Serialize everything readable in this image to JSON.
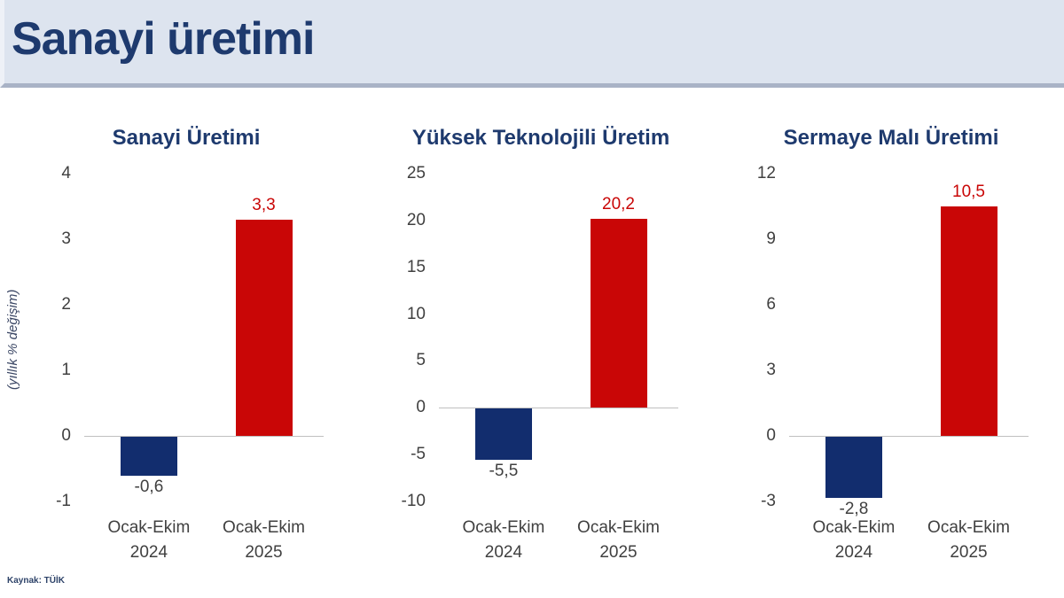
{
  "header": {
    "title": "Sanayi üretimi"
  },
  "source": {
    "label": "Kaynak: TÜİK"
  },
  "colors": {
    "bar_2024": "#122d6e",
    "bar_2025": "#c90606",
    "title_navy": "#1e3a6e",
    "header_bg": "#dde4ef",
    "axis_text": "#404040"
  },
  "chart_data": [
    {
      "type": "bar",
      "title": "Sanayi Üretimi",
      "ylabel": "(yıllık % değişim)",
      "categories": [
        "Ocak-Ekim 2024",
        "Ocak-Ekim 2025"
      ],
      "values": [
        -0.6,
        3.3
      ],
      "value_labels": [
        "-0,6",
        "3,3"
      ],
      "bar_colors": [
        "#122d6e",
        "#c90606"
      ],
      "ylim": [
        -1,
        4
      ],
      "yticks": [
        4,
        3,
        2,
        1,
        0,
        -1
      ],
      "grid": false,
      "legend": "none"
    },
    {
      "type": "bar",
      "title": "Yüksek Teknolojili Üretim",
      "ylabel": "",
      "categories": [
        "Ocak-Ekim 2024",
        "Ocak-Ekim 2025"
      ],
      "values": [
        -5.5,
        20.2
      ],
      "value_labels": [
        "-5,5",
        "20,2"
      ],
      "bar_colors": [
        "#122d6e",
        "#c90606"
      ],
      "ylim": [
        -10,
        25
      ],
      "yticks": [
        25,
        20,
        15,
        10,
        5,
        0,
        -5,
        -10
      ],
      "grid": false,
      "legend": "none"
    },
    {
      "type": "bar",
      "title": "Sermaye Malı Üretimi",
      "ylabel": "",
      "categories": [
        "Ocak-Ekim 2024",
        "Ocak-Ekim 2025"
      ],
      "values": [
        -2.8,
        10.5
      ],
      "value_labels": [
        "-2,8",
        "10,5"
      ],
      "bar_colors": [
        "#122d6e",
        "#c90606"
      ],
      "ylim": [
        -3,
        12
      ],
      "yticks": [
        12,
        9,
        6,
        3,
        0,
        -3
      ],
      "grid": false,
      "legend": "none"
    }
  ]
}
